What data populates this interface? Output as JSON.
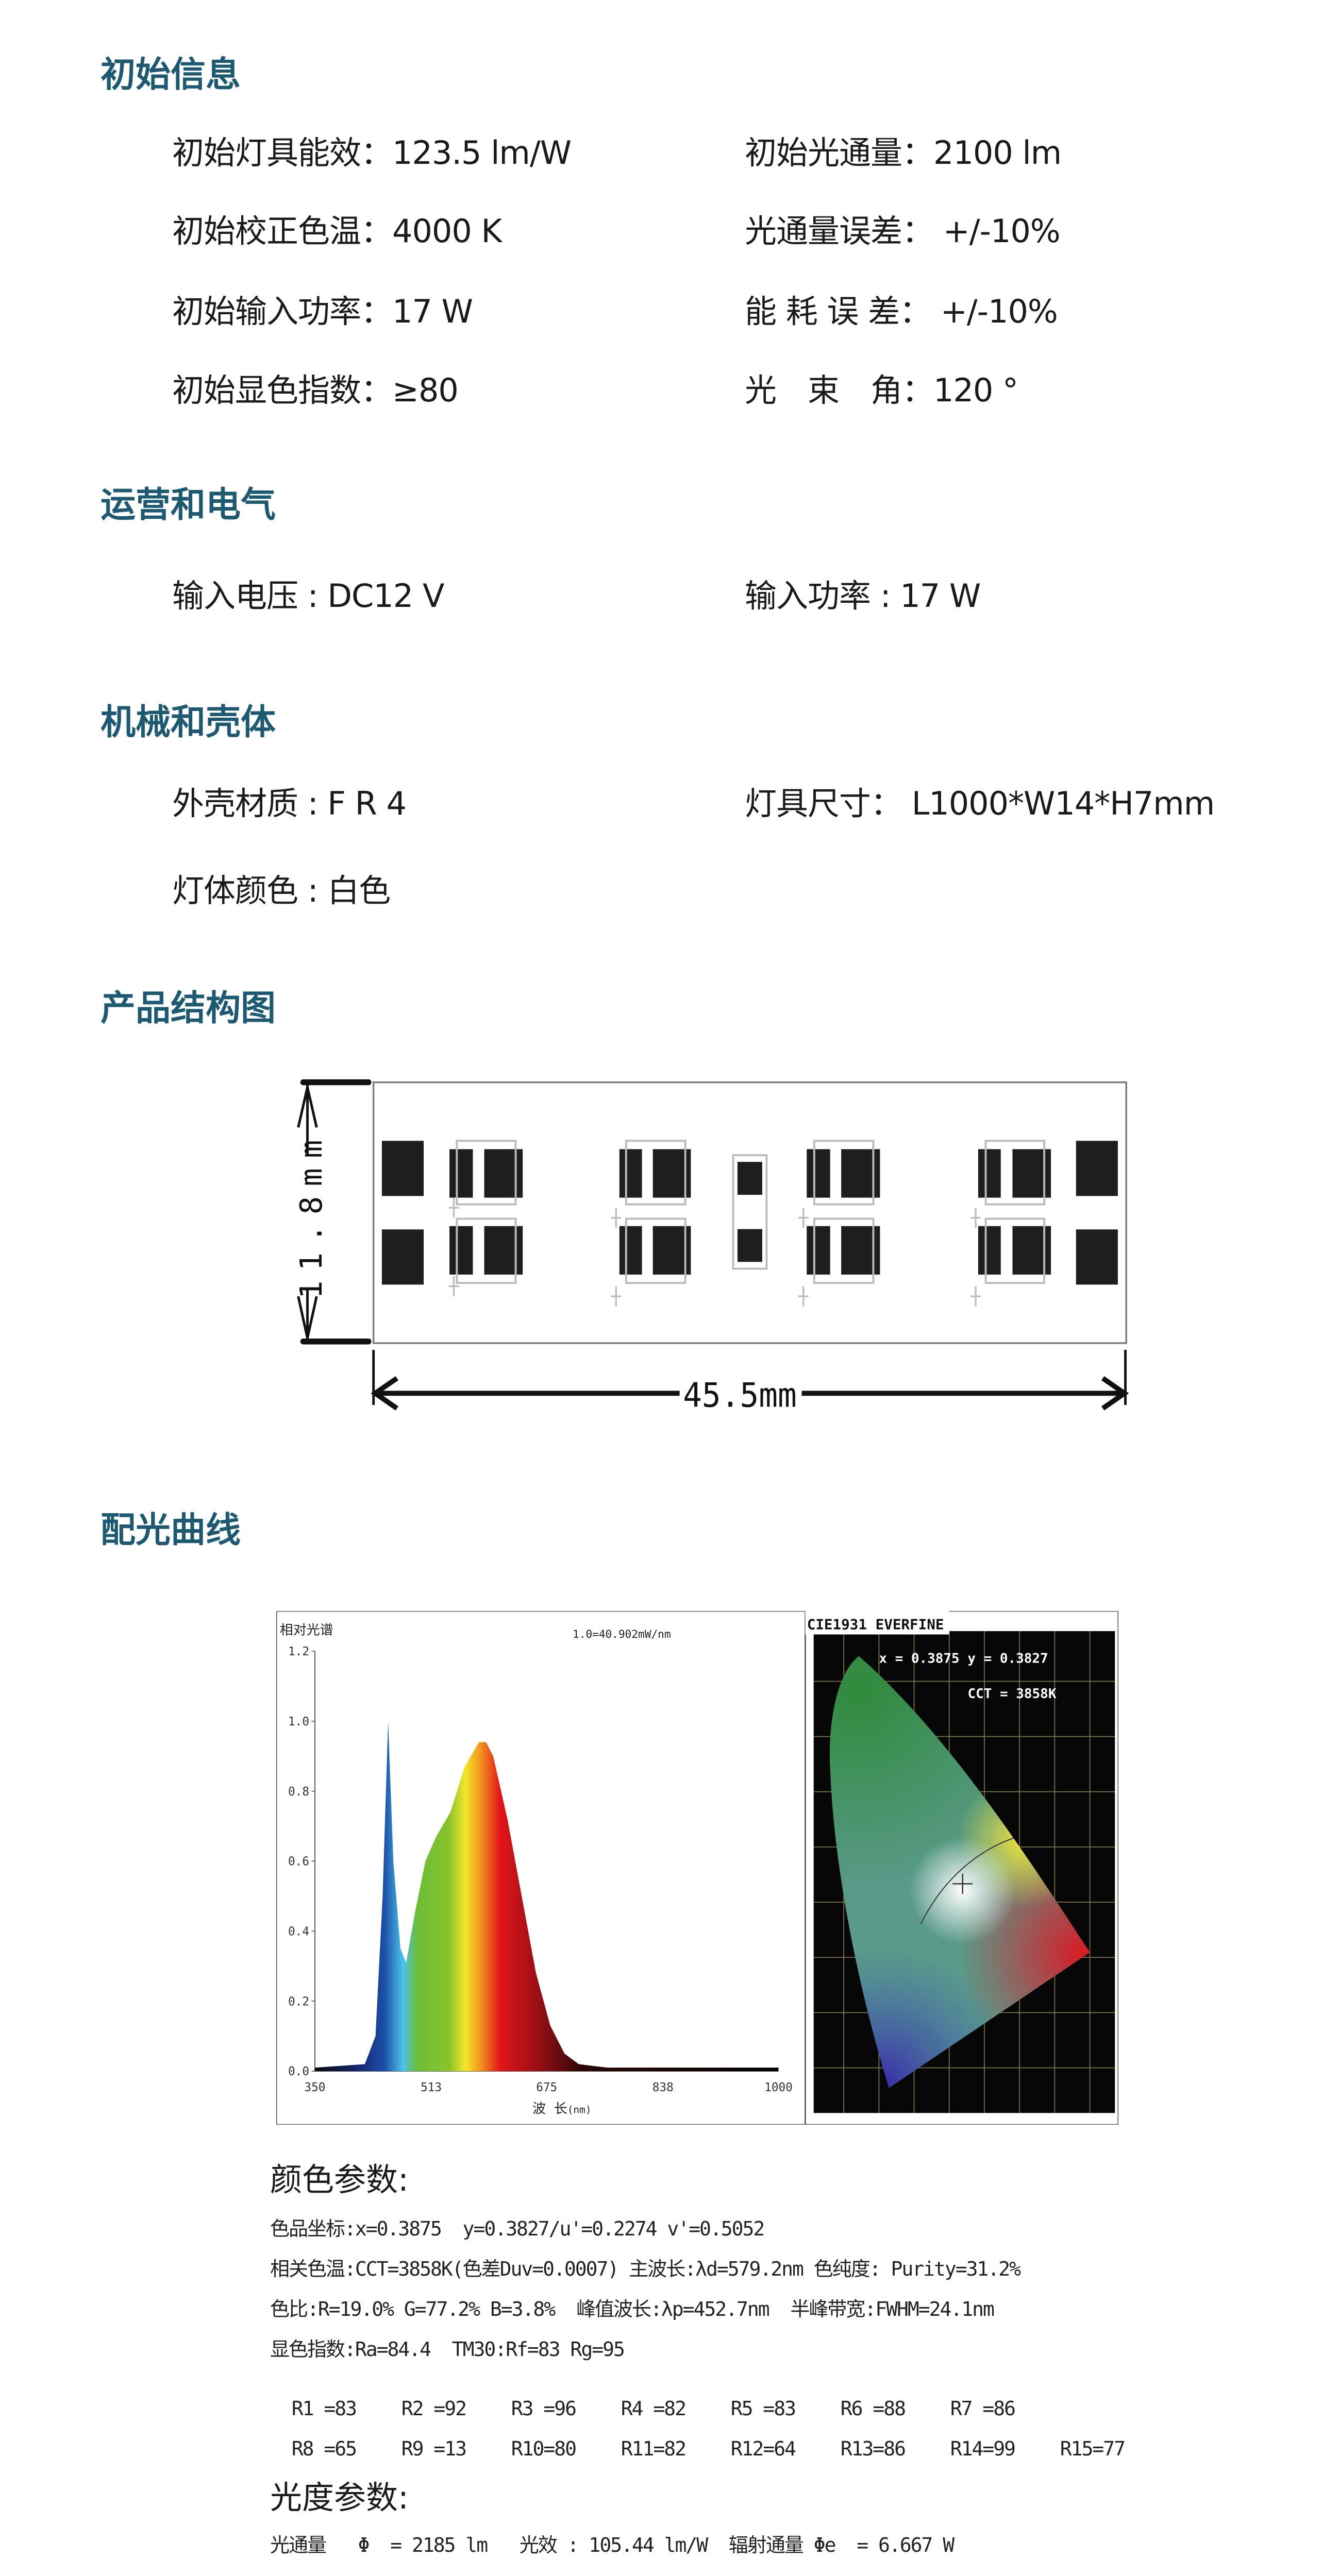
{
  "initial_info": {
    "heading": "初始信息",
    "rows": [
      {
        "left": "初始灯具能效：123.5 lm/W",
        "right": "初始光通量：2100 lm"
      },
      {
        "left": "初始校正色温：4000 K",
        "right": "光通量误差： +/-10%"
      },
      {
        "left": "初始输入功率：17 W",
        "right": "能 耗 误 差： +/-10%"
      },
      {
        "left": "初始显色指数：≥80",
        "right": "光　束　角：120 °"
      }
    ]
  },
  "electrical": {
    "heading": "运营和电气",
    "left": "输入电压 : DC12 V",
    "right": "输入功率 : 17 W"
  },
  "mechanical": {
    "heading": "机械和壳体",
    "housing": "外壳材质 : F R 4",
    "size": "灯具尺寸： L1000*W14*H7mm",
    "color": "灯体颜色 : 白色"
  },
  "structure": {
    "heading": "产品结构图",
    "height_label": "11.8mm",
    "width_label": "45.5mm"
  },
  "light_curve": {
    "heading": "配光曲线",
    "cie": {
      "title": "CIE1931 EVERFINE",
      "xy": "x = 0.3875 y = 0.3827",
      "cct": "CCT = 3858K"
    }
  },
  "chart_data": {
    "type": "area",
    "title": "相对光谱",
    "annotation": "1.0=40.902mW/nm",
    "xlabel": "波 长",
    "xlabel_unit": "(nm)",
    "xlim": [
      350,
      1000
    ],
    "ylim": [
      0,
      1.2
    ],
    "xticks": [
      "350",
      "513",
      "675",
      "838",
      "1000"
    ],
    "yticks": [
      "0.0",
      "0.2",
      "0.4",
      "0.6",
      "0.8",
      "1.0",
      "1.2"
    ],
    "fill": "visible-spectrum-gradient",
    "x": [
      350,
      420,
      435,
      445,
      452.7,
      460,
      470,
      478,
      490,
      505,
      520,
      540,
      560,
      580,
      590,
      600,
      620,
      640,
      660,
      680,
      700,
      720,
      760,
      1000
    ],
    "y": [
      0.01,
      0.02,
      0.1,
      0.5,
      1.0,
      0.6,
      0.35,
      0.31,
      0.45,
      0.6,
      0.67,
      0.74,
      0.87,
      0.94,
      0.94,
      0.9,
      0.72,
      0.5,
      0.28,
      0.13,
      0.05,
      0.02,
      0.01,
      0.01
    ]
  },
  "color_params": {
    "heading": "颜色参数:",
    "lines": [
      "色品坐标:x=0.3875  y=0.3827/u'=0.2274 v'=0.5052",
      "相关色温:CCT=3858K(色差Duv=0.0007) 主波长:λd=579.2nm 色纯度: Purity=31.2%",
      "色比:R=19.0% G=77.2% B=3.8%  峰值波长:λp=452.7nm  半峰带宽:FWHM=24.1nm",
      "显色指数:Ra=84.4  TM30:Rf=83 Rg=95"
    ],
    "r_values": [
      "R1 =83",
      "R2 =92",
      "R3 =96",
      "R4 =82",
      "R5 =83",
      "R6 =88",
      "R7 =86",
      "R8 =65",
      "R9 =13",
      "R10=80",
      "R11=82",
      "R12=64",
      "R13=86",
      "R14=99",
      "R15=77"
    ]
  },
  "photometric": {
    "heading": "光度参数:",
    "line": "光通量   Φ  = 2185 lm   光效 : 105.44 lm/W  辐射通量 Φe  = 6.667 W"
  },
  "colors": {
    "heading": "#1d5a72",
    "text": "#1a1a1a"
  }
}
